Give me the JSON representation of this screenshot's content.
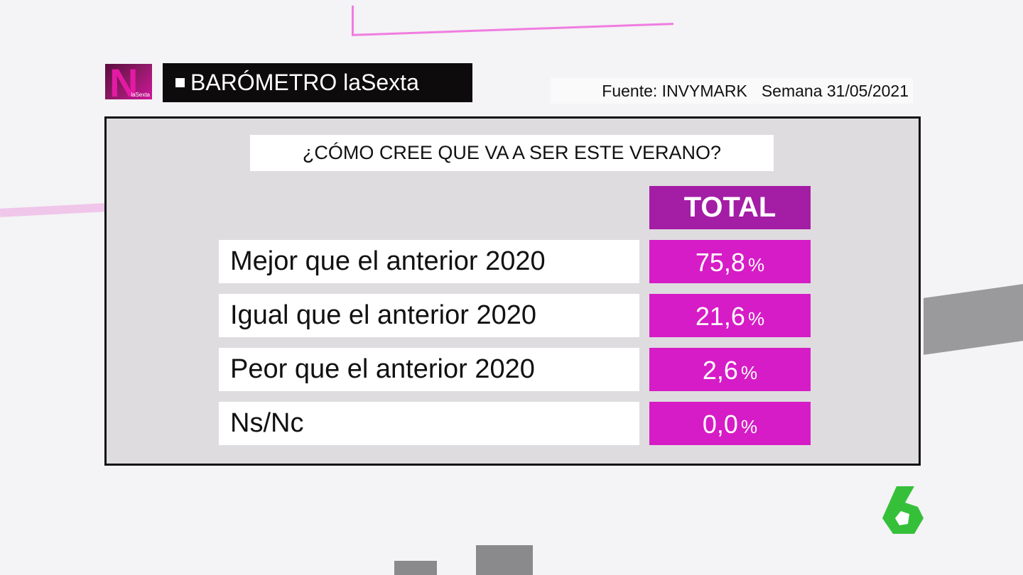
{
  "logo": {
    "letter": "N",
    "sub": "laSexta"
  },
  "header": {
    "title": "BARÓMETRO laSexta",
    "source": "Fuente: INVYMARK",
    "week": "Semana 31/05/2021"
  },
  "question": "¿CÓMO CREE QUE VA A SER ESTE VERANO?",
  "table": {
    "column": "TOTAL",
    "rows": [
      {
        "label": "Mejor que el anterior 2020",
        "value": "75,8",
        "unit": "%"
      },
      {
        "label": "Igual que el anterior 2020",
        "value": "21,6",
        "unit": "%"
      },
      {
        "label": "Peor que el anterior 2020",
        "value": "2,6",
        "unit": "%"
      },
      {
        "label": "Ns/Nc",
        "value": "0,0",
        "unit": "%"
      }
    ]
  }
}
